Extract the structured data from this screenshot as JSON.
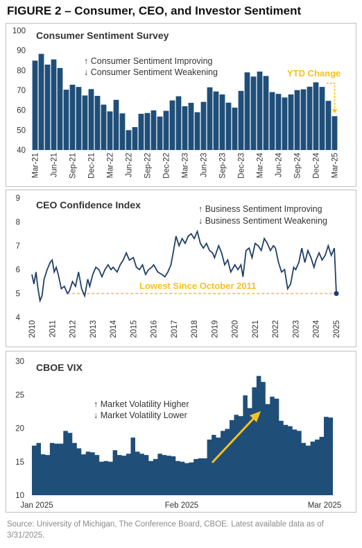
{
  "title": "FIGURE 2 – Consumer, CEO, and Investor Sentiment",
  "footer": "Source: University of Michigan, The Conference Board, CBOE. Latest available data as of 3/31/2025.",
  "colors": {
    "bar": "#1f4e79",
    "line": "#1f3f66",
    "accent": "#f7c21e",
    "frame": "#bfbfbf"
  },
  "chart_data": [
    {
      "type": "bar",
      "title": "Consumer Sentiment Survey",
      "annotations": [
        "↑ Consumer Sentiment Improving",
        "↓ Consumer Sentiment Weakening",
        "YTD Change"
      ],
      "ylim": [
        40,
        100
      ],
      "yticks": [
        "100",
        "90",
        "80",
        "70",
        "60",
        "50",
        "40"
      ],
      "xticks": [
        "Mar-21",
        "Jun-21",
        "Sep-21",
        "Dec-21",
        "Mar-22",
        "Jun-22",
        "Sep-22",
        "Dec-22",
        "Mar-23",
        "Jun-23",
        "Sep-23",
        "Dec-23",
        "Mar-24",
        "Jun-24",
        "Sep-24",
        "Dec-24",
        "Mar-25"
      ],
      "values": [
        84.9,
        88.3,
        82.9,
        85.5,
        81.2,
        70.3,
        72.8,
        71.7,
        67.4,
        70.6,
        67.2,
        62.8,
        59.4,
        65.2,
        58.4,
        50.0,
        51.5,
        58.2,
        58.6,
        59.9,
        56.8,
        59.7,
        64.9,
        67.0,
        62.0,
        63.7,
        59.0,
        64.2,
        71.5,
        69.4,
        67.9,
        63.8,
        61.3,
        69.7,
        79.0,
        76.9,
        79.4,
        77.2,
        69.1,
        68.2,
        66.4,
        67.9,
        70.1,
        70.5,
        71.8,
        74.0,
        71.7,
        64.7,
        57.0
      ]
    },
    {
      "type": "line",
      "title": "CEO Confidence Index",
      "annotations": [
        "↑ Business Sentiment Improving",
        "↓ Business Sentiment Weakening",
        "Lowest Since October 2011"
      ],
      "ylim": [
        4,
        9
      ],
      "yticks": [
        "9",
        "8",
        "7",
        "6",
        "5",
        "4"
      ],
      "xticks": [
        "2010",
        "2011",
        "2012",
        "2013",
        "2014",
        "2015",
        "2016",
        "2017",
        "2018",
        "2019",
        "2020",
        "2021",
        "2022",
        "2023",
        "2024",
        "2025"
      ],
      "x": [
        2010.0,
        2010.1,
        2010.2,
        2010.3,
        2010.4,
        2010.5,
        2010.6,
        2010.75,
        2010.9,
        2011.0,
        2011.1,
        2011.2,
        2011.3,
        2011.45,
        2011.6,
        2011.75,
        2011.85,
        2012.0,
        2012.15,
        2012.3,
        2012.45,
        2012.6,
        2012.75,
        2012.85,
        2013.0,
        2013.15,
        2013.3,
        2013.45,
        2013.6,
        2013.75,
        2013.9,
        2014.0,
        2014.2,
        2014.35,
        2014.5,
        2014.65,
        2014.8,
        2015.0,
        2015.15,
        2015.3,
        2015.45,
        2015.6,
        2015.75,
        2015.9,
        2016.0,
        2016.2,
        2016.4,
        2016.55,
        2016.7,
        2016.85,
        2017.0,
        2017.1,
        2017.25,
        2017.4,
        2017.55,
        2017.7,
        2017.85,
        2018.0,
        2018.15,
        2018.3,
        2018.45,
        2018.6,
        2018.75,
        2018.9,
        2019.0,
        2019.2,
        2019.35,
        2019.5,
        2019.65,
        2019.8,
        2020.0,
        2020.15,
        2020.3,
        2020.4,
        2020.55,
        2020.7,
        2020.85,
        2021.0,
        2021.15,
        2021.3,
        2021.45,
        2021.6,
        2021.75,
        2021.9,
        2022.0,
        2022.15,
        2022.3,
        2022.45,
        2022.6,
        2022.75,
        2022.9,
        2023.0,
        2023.15,
        2023.3,
        2023.45,
        2023.6,
        2023.75,
        2023.9,
        2024.0,
        2024.15,
        2024.3,
        2024.45,
        2024.6,
        2024.75,
        2024.9,
        2025.0
      ],
      "y": [
        5.8,
        5.4,
        5.9,
        5.2,
        4.7,
        4.9,
        5.6,
        6.0,
        6.3,
        6.4,
        5.9,
        6.1,
        5.8,
        5.2,
        5.3,
        5.0,
        5.1,
        5.5,
        5.3,
        5.9,
        5.2,
        4.9,
        5.6,
        5.3,
        5.8,
        6.1,
        6.0,
        5.7,
        6.0,
        6.2,
        6.0,
        6.1,
        5.9,
        6.2,
        6.4,
        6.7,
        6.4,
        6.5,
        6.1,
        6.0,
        6.2,
        5.8,
        6.0,
        6.1,
        6.2,
        5.9,
        5.8,
        5.7,
        5.9,
        6.2,
        6.9,
        7.4,
        7.0,
        7.3,
        7.1,
        7.4,
        7.5,
        7.3,
        7.6,
        7.1,
        6.9,
        7.1,
        6.8,
        6.7,
        6.5,
        7.0,
        6.7,
        6.2,
        6.4,
        5.9,
        6.2,
        6.0,
        6.2,
        5.7,
        6.8,
        6.9,
        6.5,
        7.1,
        7.0,
        6.8,
        7.3,
        7.1,
        6.8,
        7.0,
        6.9,
        6.3,
        5.9,
        6.0,
        5.2,
        5.4,
        6.1,
        6.0,
        6.3,
        6.9,
        6.3,
        6.8,
        6.5,
        6.1,
        6.4,
        6.7,
        6.4,
        6.6,
        7.0,
        6.6,
        6.9,
        5.0
      ],
      "reference_line": 5.0
    },
    {
      "type": "area",
      "title": "CBOE VIX",
      "annotations": [
        "↑ Market Volatility Higher",
        "↓ Market Volatility Lower"
      ],
      "ylim": [
        10,
        30
      ],
      "yticks": [
        "30",
        "25",
        "20",
        "15",
        "10"
      ],
      "xticks": [
        "Jan 2025",
        "Feb 2025",
        "Mar 2025"
      ],
      "values": [
        17.4,
        17.8,
        16.1,
        16.0,
        17.8,
        17.7,
        17.7,
        19.6,
        19.3,
        17.8,
        17.0,
        16.1,
        16.5,
        16.4,
        16.0,
        15.0,
        15.1,
        15.0,
        16.7,
        16.0,
        15.9,
        16.2,
        18.6,
        16.5,
        16.2,
        16.0,
        15.1,
        15.4,
        16.2,
        16.0,
        15.9,
        15.8,
        15.1,
        15.0,
        14.8,
        14.9,
        15.4,
        15.5,
        15.5,
        18.3,
        19.0,
        18.6,
        19.6,
        19.9,
        21.2,
        22.0,
        21.8,
        24.9,
        23.0,
        26.1,
        27.8,
        26.9,
        23.6,
        24.7,
        24.4,
        21.1,
        20.5,
        20.3,
        19.8,
        19.6,
        17.8,
        17.4,
        18.0,
        18.3,
        18.7,
        21.7,
        21.6
      ]
    }
  ]
}
